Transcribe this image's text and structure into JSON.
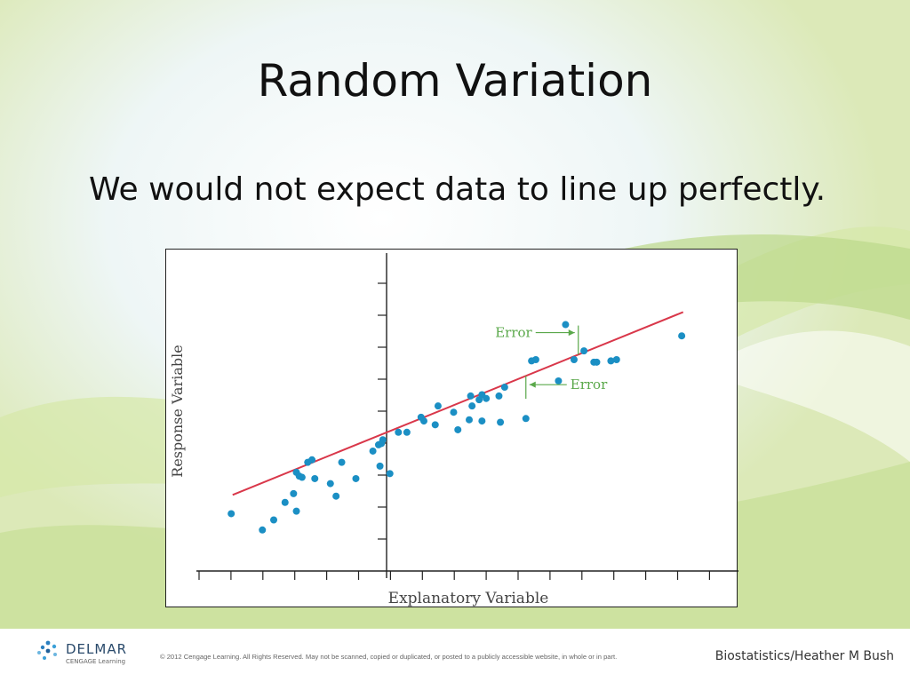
{
  "slide": {
    "title": "Random Variation",
    "subtitle": "We would not expect data to line up perfectly."
  },
  "footer": {
    "logo_name": "DELMAR",
    "logo_subtext": "CENGAGE Learning",
    "copyright": "© 2012 Cengage Learning. All Rights Reserved. May not be scanned, copied or duplicated, or posted to a publicly accessible website, in whole or in part.",
    "author": "Biostatistics/Heather M Bush"
  },
  "colors": {
    "fit_line": "#d9374a",
    "points": "#1b8fc4",
    "annotation": "#5aa84a",
    "axis": "#222222"
  },
  "chart_data": {
    "type": "scatter",
    "xlabel": "Explanatory Variable",
    "ylabel": "Response Variable",
    "xlim": [
      0,
      17
    ],
    "ylim": [
      0,
      10
    ],
    "grid": false,
    "tick_labels": false,
    "fit_line": {
      "x": [
        0.15,
        16.05
      ],
      "y": [
        1.55,
        8.85
      ]
    },
    "annotations": [
      {
        "text": "Error",
        "x": 12.35,
        "y": 8.1,
        "kind": "residual-arrow"
      },
      {
        "text": "Error",
        "x": 10.5,
        "y": 5.6,
        "kind": "residual-arrow"
      }
    ],
    "series": [
      {
        "x": [
          0.1,
          1.2,
          1.6,
          2.0,
          2.3,
          2.4,
          2.4,
          2.5,
          2.6,
          2.8,
          2.95,
          3.05,
          3.6,
          3.8,
          4.0,
          4.5,
          5.1,
          5.3,
          5.35,
          5.4,
          5.45,
          5.7,
          6.0,
          6.3,
          6.8,
          6.9,
          7.3,
          7.4,
          7.95,
          8.1,
          8.5,
          8.55,
          8.6,
          8.85,
          8.95,
          8.95,
          9.1,
          9.55,
          9.6,
          9.75,
          10.5,
          10.7,
          10.85,
          11.65,
          11.9,
          12.2,
          12.55,
          12.9,
          13.0,
          13.5,
          13.7,
          16.0
        ],
        "y": [
          0.8,
          0.15,
          0.55,
          1.25,
          1.6,
          2.45,
          0.9,
          2.3,
          2.25,
          2.85,
          2.95,
          2.2,
          2.0,
          1.5,
          2.85,
          2.2,
          3.3,
          3.55,
          2.7,
          3.6,
          3.75,
          2.4,
          4.05,
          4.05,
          4.65,
          4.5,
          4.35,
          5.1,
          4.85,
          4.15,
          4.55,
          5.5,
          5.1,
          5.35,
          5.55,
          4.5,
          5.4,
          5.5,
          4.45,
          5.85,
          4.6,
          6.9,
          6.95,
          6.1,
          8.35,
          6.95,
          7.3,
          6.85,
          6.85,
          6.9,
          6.95,
          7.9
        ]
      }
    ]
  }
}
